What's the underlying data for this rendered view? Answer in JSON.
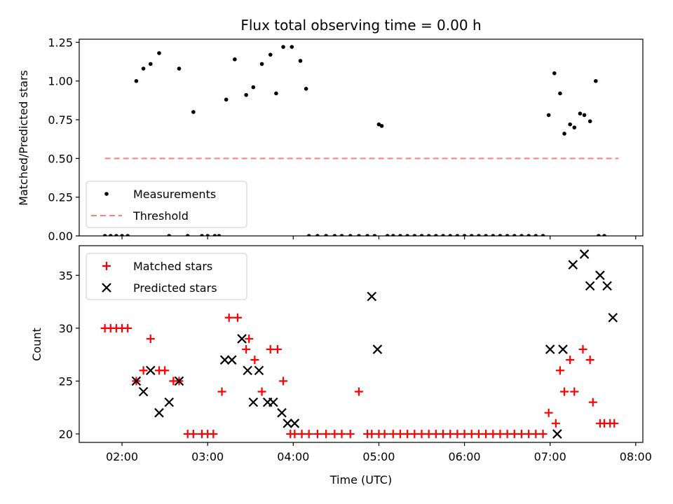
{
  "chart_data": [
    {
      "type": "scatter",
      "title": "Flux total observing time = 0.00 h",
      "xlabel": "",
      "ylabel": "Matched/Predicted stars",
      "xlim": [
        "01:30",
        "08:05"
      ],
      "ylim": [
        0,
        1.27
      ],
      "yticks": [
        "0.00",
        "0.25",
        "0.50",
        "0.75",
        "1.00",
        "1.25"
      ],
      "xticks": [
        "02:00",
        "03:00",
        "04:00",
        "05:00",
        "06:00",
        "07:00",
        "08:00"
      ],
      "show_xticklabels": false,
      "legend": "lower-left",
      "grid": false,
      "series": [
        {
          "name": "Measurements",
          "marker": "dot",
          "color": "#000000",
          "x": [
            "01:48",
            "01:52",
            "01:56",
            "02:00",
            "02:04",
            "02:10",
            "02:15",
            "02:20",
            "02:26",
            "02:33",
            "02:40",
            "02:46",
            "02:50",
            "02:56",
            "03:00",
            "03:05",
            "03:08",
            "03:13",
            "03:19",
            "03:27",
            "03:32",
            "03:38",
            "03:44",
            "03:48",
            "03:53",
            "03:59",
            "04:05",
            "04:09",
            "04:11",
            "04:17",
            "04:23",
            "04:29",
            "04:34",
            "04:40",
            "04:46",
            "04:52",
            "04:57",
            "05:00",
            "05:02",
            "05:06",
            "05:10",
            "05:15",
            "05:20",
            "05:25",
            "05:30",
            "05:35",
            "05:40",
            "05:45",
            "05:50",
            "05:55",
            "06:00",
            "06:05",
            "06:10",
            "06:15",
            "06:20",
            "06:25",
            "06:30",
            "06:35",
            "06:40",
            "06:45",
            "06:50",
            "06:55",
            "06:59",
            "07:03",
            "07:07",
            "07:10",
            "07:14",
            "07:17",
            "07:21",
            "07:24",
            "07:28",
            "07:32",
            "07:34",
            "07:38"
          ],
          "y": [
            0,
            0,
            0,
            0,
            0,
            1.0,
            1.08,
            1.11,
            1.18,
            0,
            1.08,
            0,
            0.8,
            0,
            0,
            0,
            0,
            0.88,
            1.14,
            0.91,
            0.96,
            1.11,
            1.17,
            0.92,
            1.22,
            1.22,
            1.13,
            0.95,
            0,
            0,
            0,
            0,
            0,
            0,
            0,
            0,
            0,
            0.72,
            0.71,
            0,
            0,
            0,
            0,
            0,
            0,
            0,
            0,
            0,
            0,
            0,
            0,
            0,
            0,
            0,
            0,
            0,
            0,
            0,
            0,
            0,
            0,
            0,
            0.78,
            1.05,
            0.92,
            0.66,
            0.72,
            0.7,
            0.79,
            0.78,
            0.74,
            1.0,
            0,
            0
          ]
        },
        {
          "name": "Threshold",
          "marker": "dashed-line",
          "color": "#ff7f7f",
          "x": [
            "01:48",
            "07:48"
          ],
          "y": [
            0.5,
            0.5
          ]
        }
      ]
    },
    {
      "type": "scatter",
      "title": "",
      "xlabel": "Time (UTC)",
      "ylabel": "Count",
      "xlim": [
        "01:30",
        "08:05"
      ],
      "ylim": [
        19.2,
        37.8
      ],
      "yticks": [
        "20",
        "25",
        "30",
        "35"
      ],
      "xticks": [
        "02:00",
        "03:00",
        "04:00",
        "05:00",
        "06:00",
        "07:00",
        "08:00"
      ],
      "legend": "top-left",
      "grid": false,
      "series": [
        {
          "name": "Matched stars",
          "marker": "plus",
          "color": "#ff0000",
          "x": [
            "01:48",
            "01:52",
            "01:56",
            "02:00",
            "02:04",
            "02:10",
            "02:15",
            "02:20",
            "02:26",
            "02:30",
            "02:36",
            "02:40",
            "02:46",
            "02:50",
            "02:56",
            "03:00",
            "03:04",
            "03:10",
            "03:15",
            "03:21",
            "03:27",
            "03:29",
            "03:33",
            "03:38",
            "03:44",
            "03:49",
            "03:53",
            "03:58",
            "04:01",
            "04:06",
            "04:11",
            "04:17",
            "04:23",
            "04:29",
            "04:34",
            "04:40",
            "04:46",
            "04:52",
            "04:55",
            "05:00",
            "05:04",
            "05:10",
            "05:15",
            "05:20",
            "05:25",
            "05:30",
            "05:35",
            "05:40",
            "05:45",
            "05:50",
            "05:55",
            "06:00",
            "06:05",
            "06:10",
            "06:15",
            "06:20",
            "06:25",
            "06:30",
            "06:35",
            "06:40",
            "06:45",
            "06:50",
            "06:55",
            "06:59",
            "07:04",
            "07:07",
            "07:10",
            "07:14",
            "07:17",
            "07:23",
            "07:28",
            "07:30",
            "07:35",
            "07:38",
            "07:42",
            "07:45"
          ],
          "y": [
            30,
            30,
            30,
            30,
            30,
            25,
            26,
            29,
            26,
            26,
            25,
            25,
            20,
            20,
            20,
            20,
            20,
            24,
            31,
            31,
            28,
            29,
            27,
            24,
            28,
            28,
            25,
            20,
            20,
            20,
            20,
            20,
            20,
            20,
            20,
            20,
            24,
            20,
            20,
            20,
            20,
            20,
            20,
            20,
            20,
            20,
            20,
            20,
            20,
            20,
            20,
            20,
            20,
            20,
            20,
            20,
            20,
            20,
            20,
            20,
            20,
            20,
            20,
            22,
            21,
            26,
            24,
            27,
            24,
            28,
            27,
            23,
            21,
            21,
            21,
            21
          ]
        },
        {
          "name": "Predicted stars",
          "marker": "x",
          "color": "#000000",
          "x": [
            "02:10",
            "02:15",
            "02:20",
            "02:26",
            "02:33",
            "02:40",
            "03:12",
            "03:17",
            "03:24",
            "03:28",
            "03:32",
            "03:36",
            "03:42",
            "03:46",
            "03:52",
            "03:56",
            "04:01",
            "04:55",
            "04:59",
            "07:00",
            "07:05",
            "07:09",
            "07:16",
            "07:24",
            "07:28",
            "07:35",
            "07:40",
            "07:44"
          ],
          "y": [
            25,
            24,
            26,
            22,
            23,
            25,
            27,
            27,
            29,
            26,
            23,
            26,
            23,
            23,
            22,
            21,
            21,
            33,
            28,
            28,
            20,
            28,
            36,
            37,
            34,
            35,
            34,
            31
          ]
        }
      ]
    }
  ]
}
